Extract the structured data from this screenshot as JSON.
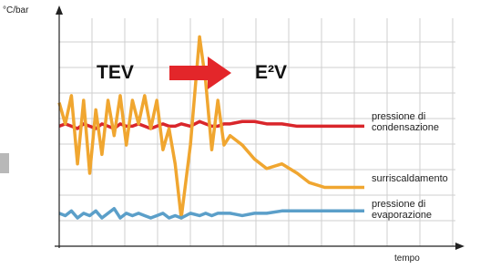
{
  "chart_data": {
    "type": "line",
    "y_label": "°C/bar",
    "x_label": "tempo",
    "annotations": [
      "TEV",
      "E²V"
    ],
    "xlim": [
      0,
      100
    ],
    "ylim": [
      0,
      100
    ],
    "grid": true,
    "x": [
      0,
      2,
      4,
      6,
      8,
      10,
      12,
      14,
      16,
      18,
      20,
      22,
      24,
      26,
      28,
      30,
      32,
      34,
      36,
      38,
      40,
      43,
      46,
      48,
      50,
      52,
      54,
      56,
      60,
      64,
      68,
      73,
      78,
      82,
      87,
      92,
      100
    ],
    "series": [
      {
        "name": "pressione di condensazione",
        "color": "#d9262b",
        "values": [
          51,
          52,
          51,
          50,
          52,
          51,
          50,
          52,
          51,
          50,
          52,
          51,
          51,
          52,
          51,
          50,
          51,
          52,
          51,
          51,
          52,
          51,
          53,
          52,
          51,
          51,
          52,
          52,
          53,
          53,
          52,
          52,
          51,
          51,
          51,
          51,
          51
        ]
      },
      {
        "name": "surriscaldamento",
        "color": "#f0a630",
        "values": [
          61,
          52,
          64,
          35,
          62,
          31,
          58,
          39,
          62,
          47,
          64,
          43,
          62,
          52,
          64,
          50,
          62,
          41,
          50,
          35,
          12,
          43,
          89,
          70,
          41,
          62,
          43,
          47,
          43,
          37,
          33,
          35,
          31,
          27,
          25,
          25,
          25
        ]
      },
      {
        "name": "pressione di evaporazione",
        "color": "#5b9fc9",
        "values": [
          14,
          13,
          15,
          12,
          14,
          13,
          15,
          12,
          14,
          16,
          12,
          14,
          13,
          14,
          13,
          12,
          13,
          14,
          12,
          13,
          12,
          14,
          13,
          14,
          13,
          14,
          14,
          14,
          13,
          14,
          14,
          15,
          15,
          15,
          15,
          15,
          15
        ]
      }
    ]
  }
}
